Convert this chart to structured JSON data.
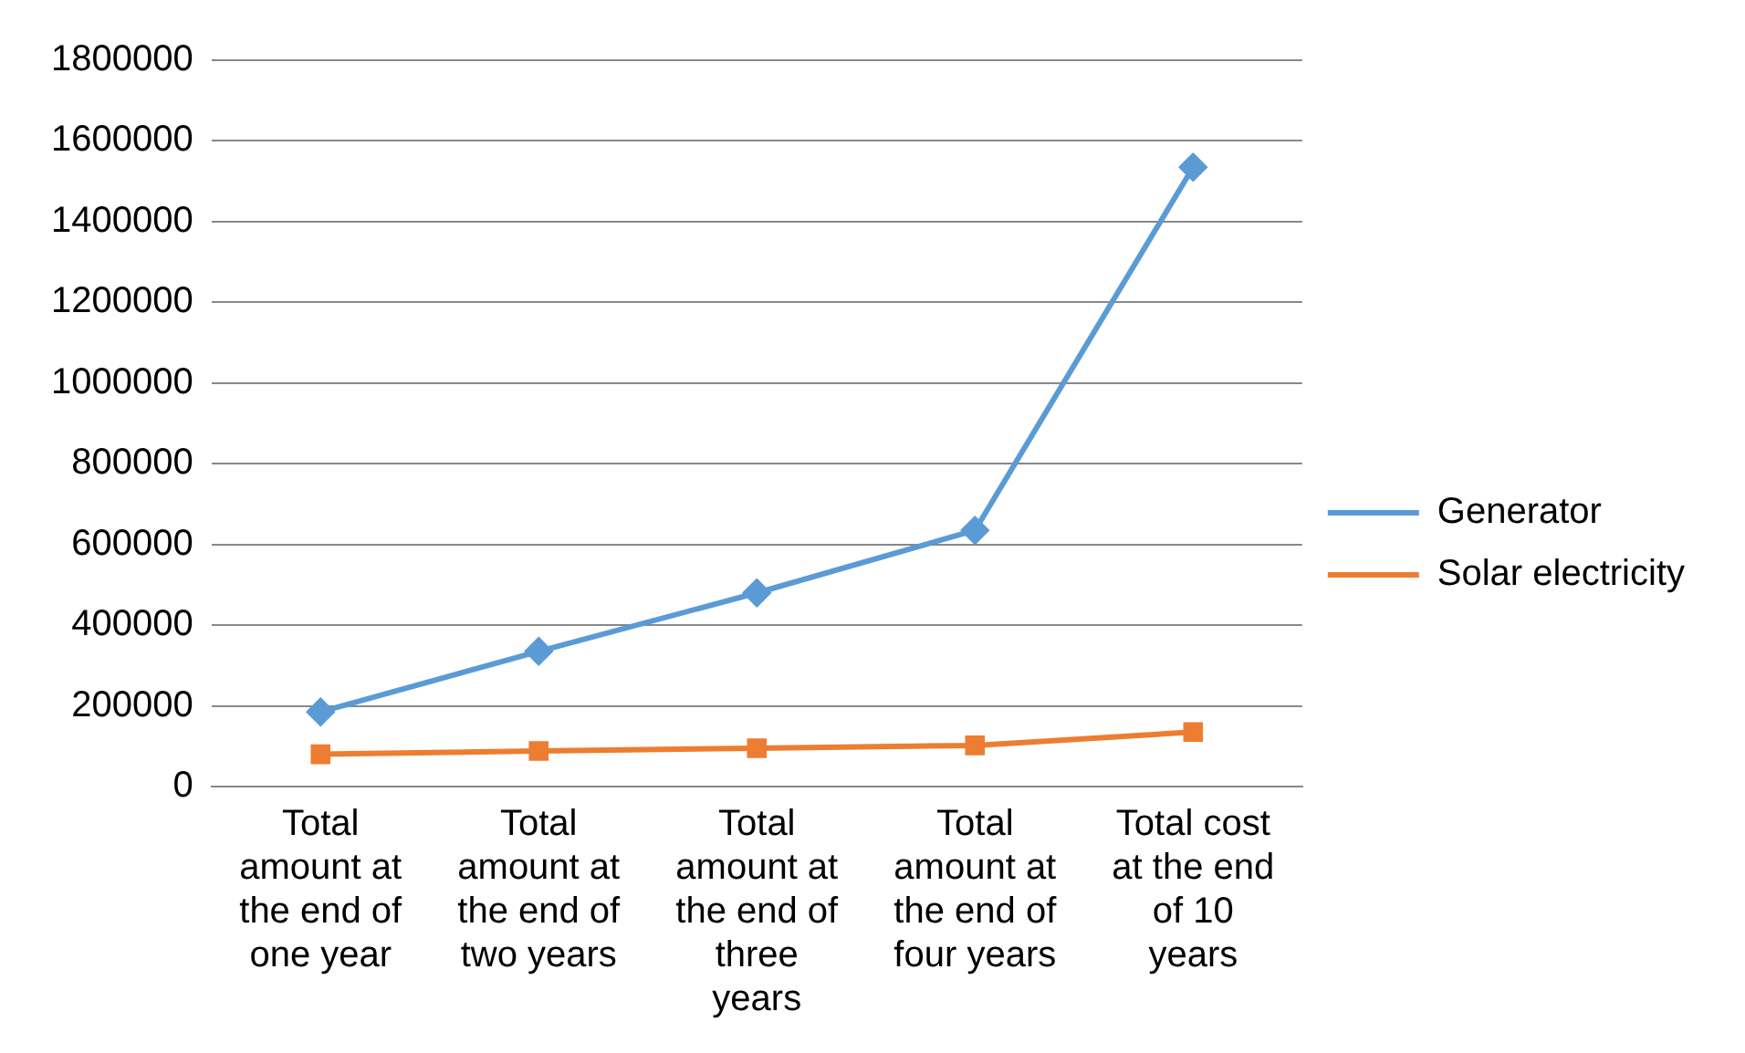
{
  "chart_data": {
    "type": "line",
    "categories": [
      "Total amount at the end of one year",
      "Total amount at the end of two years",
      "Total amount at the end of three years",
      "Total amount at the end of four years",
      "Total cost at the end of 10 years"
    ],
    "series": [
      {
        "name": "Generator",
        "color": "#5b9bd5",
        "marker": "diamond",
        "values": [
          185000,
          335000,
          480000,
          635000,
          1535000
        ]
      },
      {
        "name": "Solar electricity",
        "color": "#ed7d31",
        "marker": "square",
        "values": [
          80000,
          88000,
          95000,
          102000,
          135000
        ]
      }
    ],
    "ylim": [
      0,
      1800000
    ],
    "yticks": [
      0,
      200000,
      400000,
      600000,
      800000,
      1000000,
      1200000,
      1400000,
      1600000,
      1800000
    ],
    "grid": "y",
    "legend": "right"
  }
}
